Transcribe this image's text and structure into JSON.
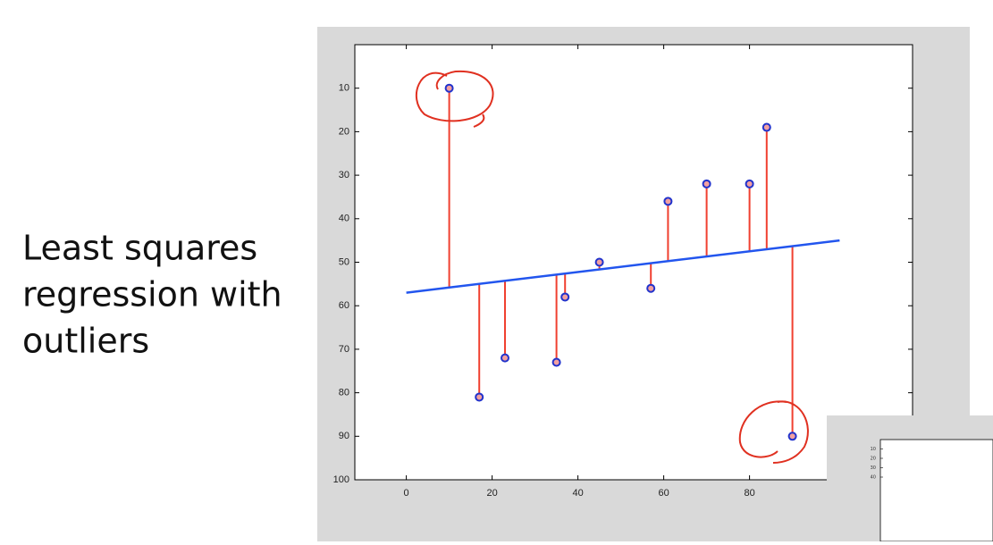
{
  "chart_data": {
    "type": "scatter",
    "title_lines": [
      "Least squares",
      "regression with",
      "outliers"
    ],
    "x": [
      10,
      17,
      23,
      35,
      37,
      45,
      57,
      61,
      70,
      80,
      84,
      90
    ],
    "series": [
      {
        "name": "points",
        "color": "#2233cc",
        "values": [
          10,
          81,
          72,
          73,
          58,
          50,
          56,
          36,
          32,
          32,
          19,
          90
        ]
      }
    ],
    "fit_line": {
      "color": "#2255ee",
      "x": [
        0,
        101
      ],
      "values": [
        57,
        45
      ]
    },
    "residual_color": "#f04030",
    "xlim": [
      -12,
      118
    ],
    "xticks": [
      0,
      20,
      40,
      60,
      80
    ],
    "ylim": [
      0,
      100
    ],
    "yticks": [
      10,
      20,
      30,
      40,
      50,
      60,
      70,
      80,
      90,
      100
    ],
    "y_reversed": true
  },
  "inset": {
    "yticks": [
      10,
      20,
      30,
      40
    ]
  }
}
